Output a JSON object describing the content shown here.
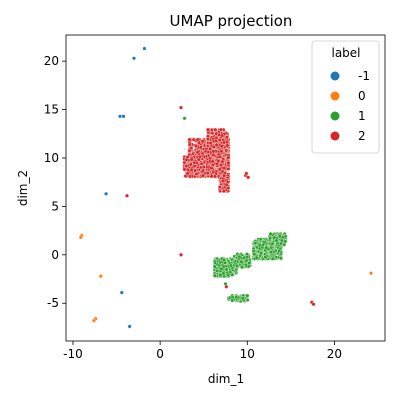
{
  "chart_data": {
    "type": "scatter",
    "title": "UMAP projection",
    "xlabel": "dim_1",
    "ylabel": "dim_2",
    "xlim": [
      -10.8,
      25.8
    ],
    "ylim": [
      -8.9,
      22.7
    ],
    "x_ticks": [
      -10,
      0,
      10,
      20
    ],
    "y_ticks": [
      -5,
      0,
      5,
      10,
      15,
      20
    ],
    "grid": false,
    "legend": {
      "title": "label",
      "placement": "top-right",
      "entries": [
        {
          "label": "-1",
          "color": "#1f77b4"
        },
        {
          "label": "0",
          "color": "#ff7f0e"
        },
        {
          "label": "1",
          "color": "#2ca02c"
        },
        {
          "label": "2",
          "color": "#d62728"
        }
      ]
    },
    "series": [
      {
        "label": "-1",
        "color": "#1f77b4",
        "points": [
          [
            -1.8,
            21.3
          ],
          [
            -3.0,
            20.3
          ],
          [
            -4.2,
            14.3
          ],
          [
            -4.6,
            14.3
          ],
          [
            -6.2,
            6.3
          ],
          [
            -4.4,
            -3.9
          ],
          [
            -3.5,
            -7.4
          ]
        ]
      },
      {
        "label": "0",
        "color": "#ff7f0e",
        "points": [
          [
            -9.0,
            2.0
          ],
          [
            -9.1,
            1.8
          ],
          [
            -6.8,
            -2.2
          ],
          [
            -7.4,
            -6.6
          ],
          [
            -7.6,
            -6.8
          ],
          [
            24.2,
            -1.9
          ]
        ]
      },
      {
        "label": "1",
        "color": "#2ca02c",
        "points": [
          [
            2.8,
            14.1
          ],
          [
            7.5,
            -3.0
          ]
        ],
        "clusters": [
          {
            "center": [
              12.3,
              0.6
            ],
            "spread": [
              1.4,
              0.9
            ],
            "n": 650
          },
          {
            "center": [
              13.5,
              1.6
            ],
            "spread": [
              0.8,
              0.5
            ],
            "n": 150
          },
          {
            "center": [
              7.5,
              -1.3
            ],
            "spread": [
              1.1,
              0.8
            ],
            "n": 320
          },
          {
            "center": [
              9.4,
              -0.6
            ],
            "spread": [
              0.8,
              0.6
            ],
            "n": 120
          },
          {
            "center": [
              9.0,
              -4.5
            ],
            "spread": [
              1.0,
              0.25
            ],
            "n": 60
          }
        ]
      },
      {
        "label": "2",
        "color": "#d62728",
        "points": [
          [
            2.4,
            15.2
          ],
          [
            2.4,
            0.0
          ],
          [
            9.8,
            8.2
          ],
          [
            10.1,
            8.0
          ],
          [
            9.9,
            8.4
          ],
          [
            -3.8,
            6.1
          ],
          [
            17.4,
            -4.9
          ],
          [
            17.6,
            -5.1
          ],
          [
            7.6,
            -3.3
          ]
        ],
        "clusters": [
          {
            "center": [
              5.6,
              10.0
            ],
            "spread": [
              2.0,
              1.7
            ],
            "n": 820
          },
          {
            "center": [
              6.6,
              11.8
            ],
            "spread": [
              1.0,
              1.0
            ],
            "n": 220
          },
          {
            "center": [
              3.9,
              9.1
            ],
            "spread": [
              1.0,
              0.9
            ],
            "n": 200
          },
          {
            "center": [
              7.3,
              7.6
            ],
            "spread": [
              0.5,
              0.9
            ],
            "n": 80
          }
        ]
      }
    ]
  }
}
